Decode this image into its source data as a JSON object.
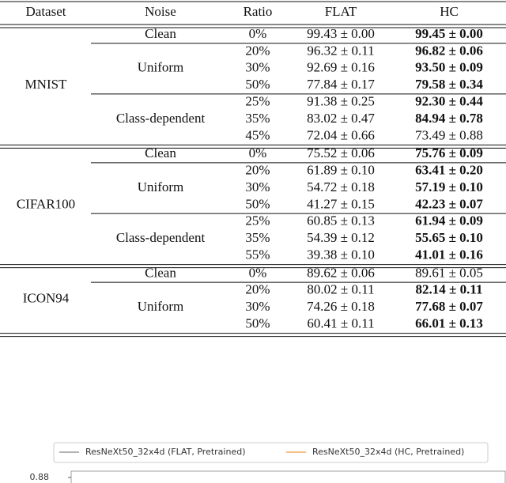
{
  "table": {
    "header": [
      "Dataset",
      "Noise",
      "Ratio",
      "FLAT",
      "HC"
    ],
    "groups": [
      {
        "dataset": "MNIST",
        "noise_groups": [
          {
            "noise": "Clean",
            "rows": [
              {
                "ratio": "0%",
                "flat": "99.43 ± 0.00",
                "hc": "99.45 ± 0.00",
                "hc_bold": true
              }
            ]
          },
          {
            "noise": "Uniform",
            "rows": [
              {
                "ratio": "20%",
                "flat": "96.32 ± 0.11",
                "hc": "96.82 ± 0.06",
                "hc_bold": true
              },
              {
                "ratio": "30%",
                "flat": "92.69 ± 0.16",
                "hc": "93.50 ± 0.09",
                "hc_bold": true
              },
              {
                "ratio": "50%",
                "flat": "77.84 ± 0.17",
                "hc": "79.58 ± 0.34",
                "hc_bold": true
              }
            ]
          },
          {
            "noise": "Class-dependent",
            "rows": [
              {
                "ratio": "25%",
                "flat": "91.38 ± 0.25",
                "hc": "92.30 ± 0.44",
                "hc_bold": true
              },
              {
                "ratio": "35%",
                "flat": "83.02 ± 0.47",
                "hc": "84.94 ± 0.78",
                "hc_bold": true
              },
              {
                "ratio": "45%",
                "flat": "72.04 ± 0.66",
                "hc": "73.49 ± 0.88",
                "hc_bold": false
              }
            ]
          }
        ]
      },
      {
        "dataset": "CIFAR100",
        "noise_groups": [
          {
            "noise": "Clean",
            "rows": [
              {
                "ratio": "0%",
                "flat": "75.52 ± 0.06",
                "hc": "75.76 ± 0.09",
                "hc_bold": true
              }
            ]
          },
          {
            "noise": "Uniform",
            "rows": [
              {
                "ratio": "20%",
                "flat": "61.89 ± 0.10",
                "hc": "63.41 ± 0.20",
                "hc_bold": true
              },
              {
                "ratio": "30%",
                "flat": "54.72 ± 0.18",
                "hc": "57.19 ± 0.10",
                "hc_bold": true
              },
              {
                "ratio": "50%",
                "flat": "41.27 ± 0.15",
                "hc": "42.23 ± 0.07",
                "hc_bold": true
              }
            ]
          },
          {
            "noise": "Class-dependent",
            "rows": [
              {
                "ratio": "25%",
                "flat": "60.85 ± 0.13",
                "hc": "61.94 ± 0.09",
                "hc_bold": true
              },
              {
                "ratio": "35%",
                "flat": "54.39 ± 0.12",
                "hc": "55.65 ± 0.10",
                "hc_bold": true
              },
              {
                "ratio": "55%",
                "flat": "39.38 ± 0.10",
                "hc": "41.01 ± 0.16",
                "hc_bold": true
              }
            ]
          }
        ]
      },
      {
        "dataset": "ICON94",
        "noise_groups": [
          {
            "noise": "Clean",
            "rows": [
              {
                "ratio": "0%",
                "flat": "89.62 ± 0.06",
                "hc": "89.61 ± 0.05",
                "hc_bold": false
              }
            ]
          },
          {
            "noise": "Uniform",
            "rows": [
              {
                "ratio": "20%",
                "flat": "80.02 ± 0.11",
                "hc": "82.14 ± 0.11",
                "hc_bold": true
              },
              {
                "ratio": "30%",
                "flat": "74.26 ± 0.18",
                "hc": "77.68 ± 0.07",
                "hc_bold": true
              },
              {
                "ratio": "50%",
                "flat": "60.41 ± 0.11",
                "hc": "66.01 ± 0.13",
                "hc_bold": true
              }
            ]
          }
        ]
      }
    ]
  },
  "chart_fragment": {
    "legend": [
      {
        "name": "ResNeXt50_32x4d (FLAT, Pretrained)",
        "color": "#999999"
      },
      {
        "name": "ResNeXt50_32x4d (HC, Pretrained)",
        "color": "#f5a65b"
      }
    ],
    "ytick": "0.88"
  }
}
